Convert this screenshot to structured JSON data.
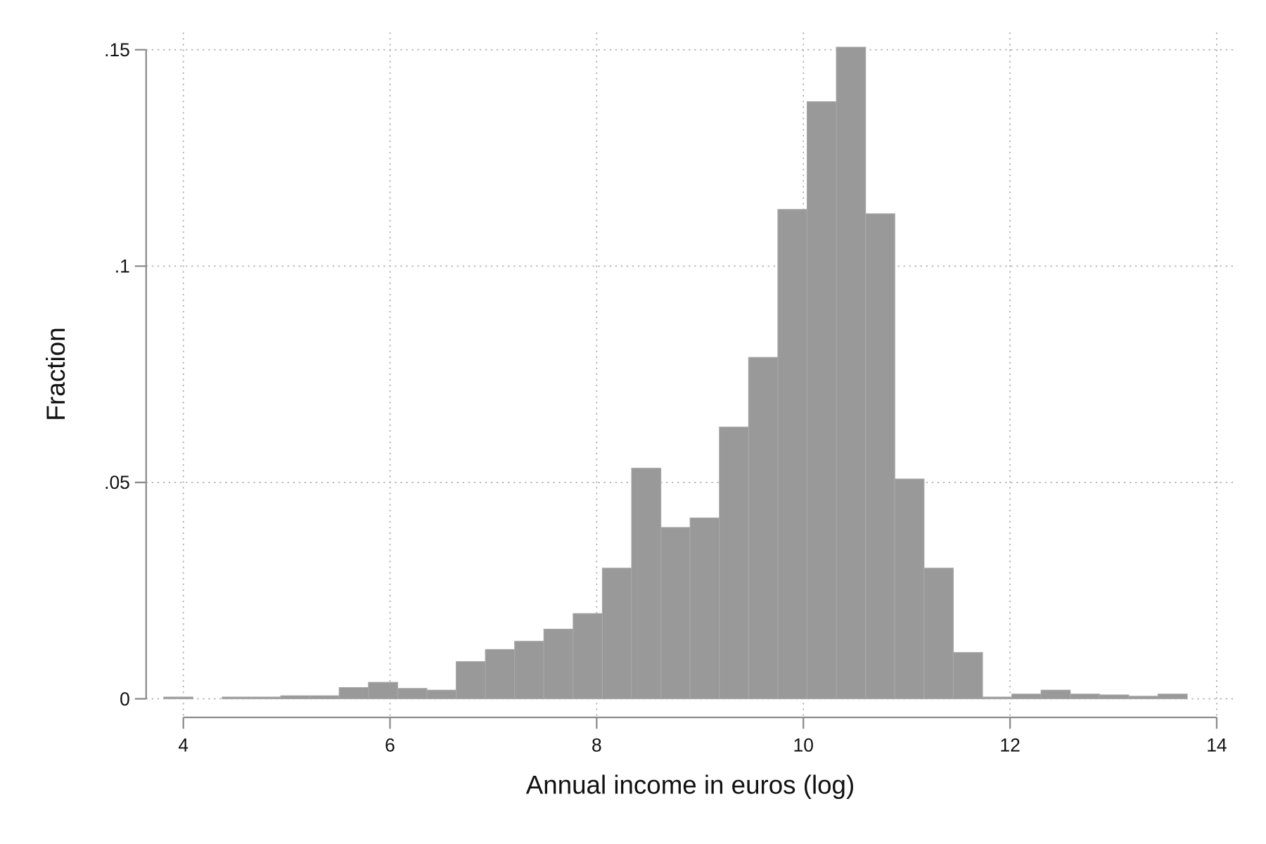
{
  "chart_data": {
    "type": "histogram",
    "x_label": "Annual income in euros (log)",
    "y_label": "Fraction",
    "color": "#999999",
    "grid": true,
    "bins": [
      3.81,
      4.093,
      4.376,
      4.659,
      4.942,
      5.225,
      5.508,
      5.791,
      6.074,
      6.357,
      6.64,
      6.923,
      7.206,
      7.489,
      7.772,
      8.055,
      8.338,
      8.621,
      8.904,
      9.187,
      9.47,
      9.753,
      10.036,
      10.319,
      10.602,
      10.885,
      11.168,
      11.451,
      11.734,
      12.017,
      12.3,
      12.583,
      12.866,
      13.149,
      13.432,
      13.715
    ],
    "values": [
      0.0004,
      0,
      0.0004,
      0.0004,
      0.0007,
      0.0007,
      0.0026,
      0.0038,
      0.0024,
      0.002,
      0.0086,
      0.0114,
      0.0133,
      0.0161,
      0.0197,
      0.0302,
      0.0533,
      0.0396,
      0.0418,
      0.0628,
      0.0789,
      0.1131,
      0.138,
      0.1506,
      0.1121,
      0.0508,
      0.0302,
      0.0107,
      0.0004,
      0.0011,
      0.002,
      0.0011,
      0.0009,
      0.0006,
      0.0011
    ],
    "xlim": [
      3.64,
      14.18
    ],
    "ylim": [
      -0.0043,
      0.154
    ],
    "xticks": [
      4,
      6,
      8,
      10,
      12,
      14
    ],
    "yticks": [
      0,
      {
        "value": 0.05,
        "label": ".05"
      },
      {
        "value": 0.1,
        "label": ".1"
      },
      {
        "value": 0.15,
        "label": ".15"
      }
    ]
  }
}
